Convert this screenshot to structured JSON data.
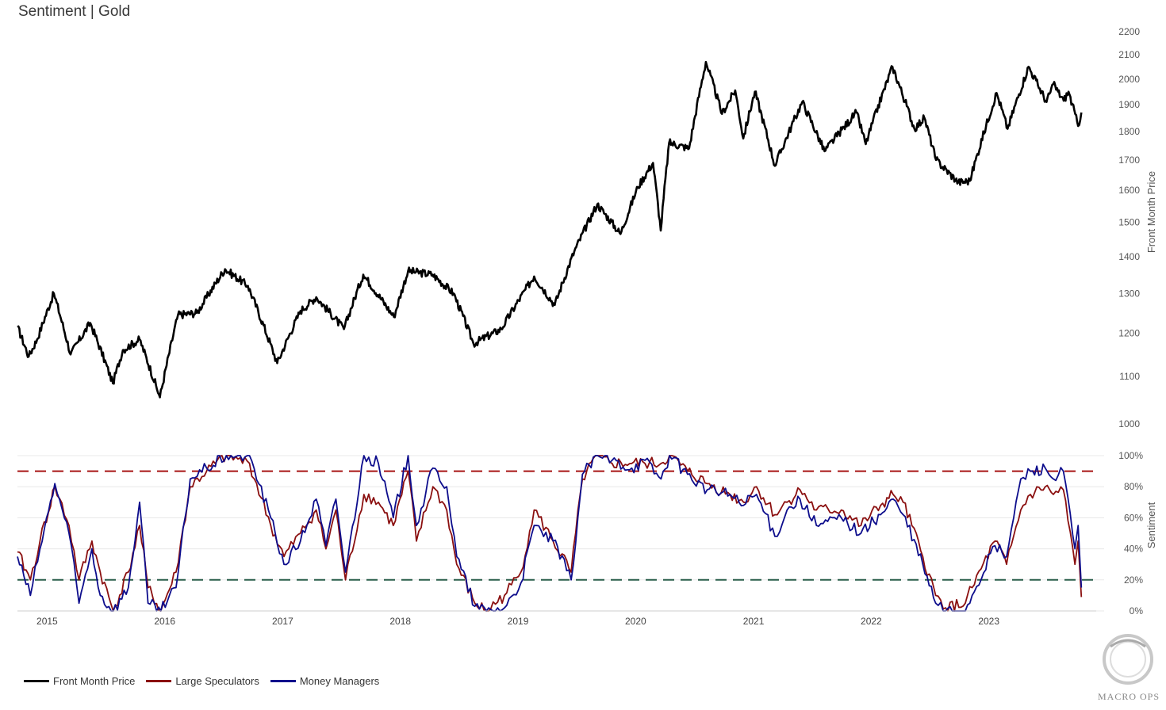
{
  "title": "Sentiment | Gold",
  "colors": {
    "price": "#000000",
    "large_specs": "#8b1010",
    "money_managers": "#0d0d8c",
    "upper_threshold": "#a81414",
    "lower_threshold": "#2a5e4a",
    "grid": "#e8e8e8"
  },
  "legend": [
    {
      "label": "Front Month Price",
      "color": "#000000"
    },
    {
      "label": "Large Speculators",
      "color": "#8b1010"
    },
    {
      "label": "Money Managers",
      "color": "#0d0d8c"
    }
  ],
  "logo_text": "MACRO OPS",
  "chart_data": [
    {
      "type": "line",
      "ylabel": "Front Month Price",
      "yscale": "log",
      "ylim": [
        1000,
        2200
      ],
      "yticks": [
        "1000",
        "1100",
        "1200",
        "1300",
        "1400",
        "1500",
        "1600",
        "1700",
        "1800",
        "1900",
        "2000",
        "2100",
        "2200"
      ],
      "x_ticks": [
        "2015",
        "2016",
        "2017",
        "2018",
        "2019",
        "2020",
        "2021",
        "2022",
        "2023"
      ],
      "xlim": [
        "2014-10-01",
        "2023-11-30"
      ],
      "series": [
        {
          "name": "Front Month Price",
          "points": [
            [
              "2014-10-01",
              1215
            ],
            [
              "2014-11-05",
              1145
            ],
            [
              "2014-12-01",
              1185
            ],
            [
              "2015-01-22",
              1300
            ],
            [
              "2015-03-15",
              1150
            ],
            [
              "2015-05-15",
              1225
            ],
            [
              "2015-07-24",
              1085
            ],
            [
              "2015-08-24",
              1160
            ],
            [
              "2015-10-15",
              1185
            ],
            [
              "2015-12-17",
              1055
            ],
            [
              "2016-02-11",
              1245
            ],
            [
              "2016-04-10",
              1250
            ],
            [
              "2016-07-06",
              1365
            ],
            [
              "2016-09-15",
              1320
            ],
            [
              "2016-12-15",
              1130
            ],
            [
              "2017-02-25",
              1255
            ],
            [
              "2017-04-15",
              1290
            ],
            [
              "2017-07-10",
              1210
            ],
            [
              "2017-09-08",
              1350
            ],
            [
              "2017-12-12",
              1240
            ],
            [
              "2018-01-25",
              1360
            ],
            [
              "2018-04-11",
              1350
            ],
            [
              "2018-06-15",
              1300
            ],
            [
              "2018-08-16",
              1175
            ],
            [
              "2018-11-10",
              1210
            ],
            [
              "2019-02-20",
              1345
            ],
            [
              "2019-04-25",
              1270
            ],
            [
              "2019-06-25",
              1415
            ],
            [
              "2019-09-04",
              1555
            ],
            [
              "2019-11-15",
              1465
            ],
            [
              "2020-01-08",
              1610
            ],
            [
              "2020-02-24",
              1690
            ],
            [
              "2020-03-19",
              1475
            ],
            [
              "2020-04-14",
              1760
            ],
            [
              "2020-06-15",
              1740
            ],
            [
              "2020-08-06",
              2070
            ],
            [
              "2020-09-25",
              1865
            ],
            [
              "2020-11-05",
              1955
            ],
            [
              "2020-11-30",
              1775
            ],
            [
              "2021-01-05",
              1950
            ],
            [
              "2021-03-08",
              1680
            ],
            [
              "2021-06-01",
              1910
            ],
            [
              "2021-08-09",
              1730
            ],
            [
              "2021-11-16",
              1870
            ],
            [
              "2021-12-15",
              1755
            ],
            [
              "2022-03-08",
              2050
            ],
            [
              "2022-05-15",
              1810
            ],
            [
              "2022-06-15",
              1850
            ],
            [
              "2022-07-21",
              1700
            ],
            [
              "2022-09-28",
              1625
            ],
            [
              "2022-11-03",
              1630
            ],
            [
              "2023-01-25",
              1945
            ],
            [
              "2023-02-28",
              1810
            ],
            [
              "2023-05-04",
              2050
            ],
            [
              "2023-06-29",
              1910
            ],
            [
              "2023-07-20",
              1980
            ],
            [
              "2023-08-21",
              1915
            ],
            [
              "2023-09-05",
              1950
            ],
            [
              "2023-10-05",
              1820
            ],
            [
              "2023-10-15",
              1870
            ]
          ]
        }
      ]
    },
    {
      "type": "line",
      "ylabel": "Sentiment",
      "ylim": [
        0,
        100
      ],
      "yticks": [
        "0%",
        "20%",
        "40%",
        "60%",
        "80%",
        "100%"
      ],
      "x_ticks": [
        "2015",
        "2016",
        "2017",
        "2018",
        "2019",
        "2020",
        "2021",
        "2022",
        "2023"
      ],
      "xlim": [
        "2014-10-01",
        "2023-11-30"
      ],
      "thresholds": [
        90,
        20
      ],
      "series": [
        {
          "name": "Large Speculators",
          "points": [
            [
              "2014-10-01",
              38
            ],
            [
              "2014-11-10",
              20
            ],
            [
              "2014-12-10",
              45
            ],
            [
              "2015-01-25",
              80
            ],
            [
              "2015-03-10",
              55
            ],
            [
              "2015-04-10",
              20
            ],
            [
              "2015-05-20",
              45
            ],
            [
              "2015-06-15",
              25
            ],
            [
              "2015-07-25",
              0
            ],
            [
              "2015-09-10",
              25
            ],
            [
              "2015-10-15",
              55
            ],
            [
              "2015-11-10",
              15
            ],
            [
              "2015-12-20",
              0
            ],
            [
              "2016-02-05",
              25
            ],
            [
              "2016-03-20",
              80
            ],
            [
              "2016-05-10",
              90
            ],
            [
              "2016-07-10",
              100
            ],
            [
              "2016-09-20",
              95
            ],
            [
              "2016-11-25",
              55
            ],
            [
              "2017-01-05",
              35
            ],
            [
              "2017-02-25",
              50
            ],
            [
              "2017-04-15",
              65
            ],
            [
              "2017-05-15",
              40
            ],
            [
              "2017-06-15",
              65
            ],
            [
              "2017-07-15",
              20
            ],
            [
              "2017-09-10",
              75
            ],
            [
              "2017-10-25",
              70
            ],
            [
              "2017-12-10",
              55
            ],
            [
              "2018-01-25",
              90
            ],
            [
              "2018-02-20",
              45
            ],
            [
              "2018-04-12",
              80
            ],
            [
              "2018-05-25",
              65
            ],
            [
              "2018-06-25",
              30
            ],
            [
              "2018-08-20",
              5
            ],
            [
              "2018-09-25",
              0
            ],
            [
              "2018-11-20",
              10
            ],
            [
              "2019-01-10",
              25
            ],
            [
              "2019-02-20",
              65
            ],
            [
              "2019-04-20",
              45
            ],
            [
              "2019-06-15",
              25
            ],
            [
              "2019-07-20",
              85
            ],
            [
              "2019-09-05",
              100
            ],
            [
              "2019-10-20",
              95
            ],
            [
              "2019-12-20",
              95
            ],
            [
              "2020-01-30",
              95
            ],
            [
              "2020-03-20",
              95
            ],
            [
              "2020-04-15",
              100
            ],
            [
              "2020-06-10",
              90
            ],
            [
              "2020-08-10",
              82
            ],
            [
              "2020-10-20",
              75
            ],
            [
              "2020-12-01",
              70
            ],
            [
              "2021-01-10",
              80
            ],
            [
              "2021-03-08",
              62
            ],
            [
              "2021-04-15",
              70
            ],
            [
              "2021-05-25",
              78
            ],
            [
              "2021-07-15",
              65
            ],
            [
              "2021-09-30",
              65
            ],
            [
              "2021-11-30",
              55
            ],
            [
              "2022-01-30",
              68
            ],
            [
              "2022-03-10",
              75
            ],
            [
              "2022-04-10",
              70
            ],
            [
              "2022-06-10",
              35
            ],
            [
              "2022-07-20",
              10
            ],
            [
              "2022-08-20",
              2
            ],
            [
              "2022-10-20",
              5
            ],
            [
              "2022-11-10",
              15
            ],
            [
              "2023-01-20",
              45
            ],
            [
              "2023-02-25",
              30
            ],
            [
              "2023-04-10",
              65
            ],
            [
              "2023-05-10",
              75
            ],
            [
              "2023-06-25",
              80
            ],
            [
              "2023-07-20",
              75
            ],
            [
              "2023-08-20",
              78
            ],
            [
              "2023-09-25",
              30
            ],
            [
              "2023-10-05",
              45
            ],
            [
              "2023-10-15",
              9
            ]
          ]
        },
        {
          "name": "Money Managers",
          "points": [
            [
              "2014-10-01",
              35
            ],
            [
              "2014-11-10",
              10
            ],
            [
              "2014-12-10",
              40
            ],
            [
              "2015-01-25",
              82
            ],
            [
              "2015-03-10",
              50
            ],
            [
              "2015-04-10",
              5
            ],
            [
              "2015-05-20",
              40
            ],
            [
              "2015-06-15",
              10
            ],
            [
              "2015-07-25",
              0
            ],
            [
              "2015-09-10",
              15
            ],
            [
              "2015-10-15",
              70
            ],
            [
              "2015-11-10",
              5
            ],
            [
              "2015-12-20",
              0
            ],
            [
              "2016-02-05",
              15
            ],
            [
              "2016-03-20",
              85
            ],
            [
              "2016-05-10",
              92
            ],
            [
              "2016-07-10",
              100
            ],
            [
              "2016-09-20",
              100
            ],
            [
              "2016-11-25",
              60
            ],
            [
              "2017-01-05",
              30
            ],
            [
              "2017-02-25",
              45
            ],
            [
              "2017-04-15",
              72
            ],
            [
              "2017-05-15",
              42
            ],
            [
              "2017-06-15",
              72
            ],
            [
              "2017-07-15",
              25
            ],
            [
              "2017-09-10",
              100
            ],
            [
              "2017-10-25",
              95
            ],
            [
              "2017-12-10",
              60
            ],
            [
              "2018-01-25",
              100
            ],
            [
              "2018-02-20",
              55
            ],
            [
              "2018-04-12",
              92
            ],
            [
              "2018-05-25",
              80
            ],
            [
              "2018-06-25",
              35
            ],
            [
              "2018-08-20",
              3
            ],
            [
              "2018-09-25",
              0
            ],
            [
              "2018-11-20",
              2
            ],
            [
              "2019-01-10",
              18
            ],
            [
              "2019-02-20",
              55
            ],
            [
              "2019-04-20",
              45
            ],
            [
              "2019-06-15",
              20
            ],
            [
              "2019-07-20",
              88
            ],
            [
              "2019-09-05",
              100
            ],
            [
              "2019-10-20",
              97
            ],
            [
              "2019-12-20",
              92
            ],
            [
              "2020-01-30",
              97
            ],
            [
              "2020-03-20",
              85
            ],
            [
              "2020-04-15",
              100
            ],
            [
              "2020-06-10",
              88
            ],
            [
              "2020-08-10",
              78
            ],
            [
              "2020-10-20",
              75
            ],
            [
              "2020-12-01",
              68
            ],
            [
              "2021-01-10",
              75
            ],
            [
              "2021-03-08",
              48
            ],
            [
              "2021-04-15",
              65
            ],
            [
              "2021-05-25",
              72
            ],
            [
              "2021-07-15",
              55
            ],
            [
              "2021-09-30",
              60
            ],
            [
              "2021-11-30",
              50
            ],
            [
              "2022-01-30",
              62
            ],
            [
              "2022-03-10",
              72
            ],
            [
              "2022-04-10",
              62
            ],
            [
              "2022-06-10",
              30
            ],
            [
              "2022-07-20",
              5
            ],
            [
              "2022-08-20",
              0
            ],
            [
              "2022-10-20",
              0
            ],
            [
              "2022-11-10",
              10
            ],
            [
              "2023-01-20",
              42
            ],
            [
              "2023-02-25",
              35
            ],
            [
              "2023-04-10",
              85
            ],
            [
              "2023-05-10",
              90
            ],
            [
              "2023-06-25",
              92
            ],
            [
              "2023-07-20",
              85
            ],
            [
              "2023-08-20",
              90
            ],
            [
              "2023-09-25",
              40
            ],
            [
              "2023-10-05",
              55
            ],
            [
              "2023-10-15",
              15
            ]
          ]
        }
      ]
    }
  ]
}
